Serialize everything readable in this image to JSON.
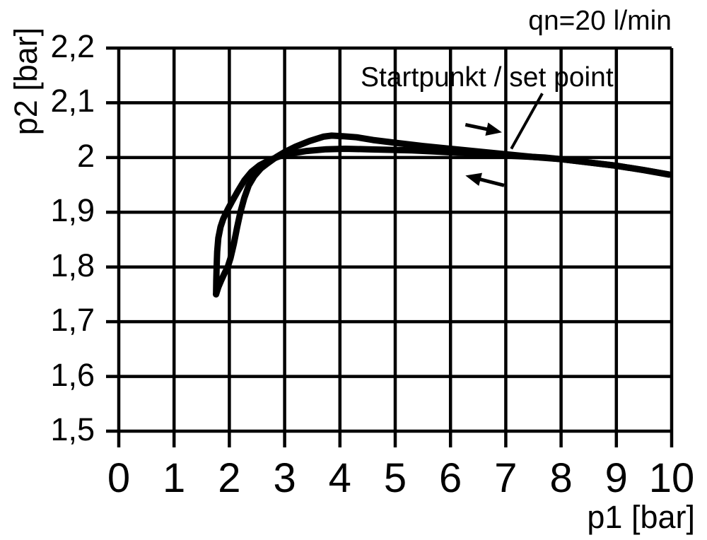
{
  "figure": {
    "background": "#ffffff",
    "ink_color": "#000000"
  },
  "chart_data": {
    "type": "line",
    "title_annotation": "qn=20 l/min",
    "xlabel": "p1 [bar]",
    "ylabel": "p2 [bar]",
    "xlim": [
      0,
      10
    ],
    "ylim": [
      1.5,
      2.2
    ],
    "grid": true,
    "legend": "none",
    "line_color": "#000000",
    "x_ticks": [
      {
        "label": "0",
        "value": 0
      },
      {
        "label": "1",
        "value": 1
      },
      {
        "label": "2",
        "value": 2
      },
      {
        "label": "3",
        "value": 3
      },
      {
        "label": "4",
        "value": 4
      },
      {
        "label": "5",
        "value": 5
      },
      {
        "label": "6",
        "value": 6
      },
      {
        "label": "7",
        "value": 7
      },
      {
        "label": "8",
        "value": 8
      },
      {
        "label": "9",
        "value": 9
      },
      {
        "label": "10",
        "value": 10
      }
    ],
    "y_ticks": [
      {
        "label": "2,2",
        "value": 2.2
      },
      {
        "label": "2,1",
        "value": 2.1
      },
      {
        "label": "2",
        "value": 2.0
      },
      {
        "label": "1,9",
        "value": 1.9
      },
      {
        "label": "1,8",
        "value": 1.8
      },
      {
        "label": "1,7",
        "value": 1.7
      },
      {
        "label": "1,6",
        "value": 1.6
      },
      {
        "label": "1,5",
        "value": 1.5
      }
    ],
    "series": [
      {
        "name": "pressure-increasing-sweep",
        "direction": "right",
        "points": [
          [
            1.76,
            1.75
          ],
          [
            1.8,
            1.763
          ],
          [
            1.85,
            1.775
          ],
          [
            1.91,
            1.788
          ],
          [
            1.97,
            1.8
          ],
          [
            2.02,
            1.816
          ],
          [
            2.08,
            1.842
          ],
          [
            2.14,
            1.872
          ],
          [
            2.2,
            1.9
          ],
          [
            2.27,
            1.926
          ],
          [
            2.35,
            1.949
          ],
          [
            2.45,
            1.966
          ],
          [
            2.57,
            1.98
          ],
          [
            2.7,
            1.99
          ],
          [
            2.85,
            2.001
          ],
          [
            3.0,
            2.01
          ],
          [
            3.2,
            2.02
          ],
          [
            3.45,
            2.03
          ],
          [
            3.7,
            2.038
          ],
          [
            3.85,
            2.04
          ],
          [
            4.05,
            2.039
          ],
          [
            4.3,
            2.037
          ],
          [
            4.6,
            2.032
          ],
          [
            5.0,
            2.027
          ],
          [
            5.5,
            2.021
          ],
          [
            6.0,
            2.016
          ],
          [
            6.5,
            2.011
          ],
          [
            7.0,
            2.006
          ],
          [
            7.5,
            2.001
          ],
          [
            8.0,
            1.997
          ],
          [
            8.5,
            1.991
          ],
          [
            9.0,
            1.985
          ],
          [
            9.5,
            1.977
          ],
          [
            9.95,
            1.969
          ]
        ]
      },
      {
        "name": "pressure-decreasing-sweep",
        "direction": "left",
        "points": [
          [
            9.95,
            1.969
          ],
          [
            9.5,
            1.977
          ],
          [
            9.0,
            1.985
          ],
          [
            8.5,
            1.991
          ],
          [
            8.0,
            1.997
          ],
          [
            7.7,
            2.0
          ],
          [
            7.3,
            2.002
          ],
          [
            6.9,
            2.004
          ],
          [
            6.5,
            2.007
          ],
          [
            6.1,
            2.009
          ],
          [
            5.7,
            2.011
          ],
          [
            5.3,
            2.013
          ],
          [
            4.9,
            2.014
          ],
          [
            4.5,
            2.015
          ],
          [
            4.1,
            2.016
          ],
          [
            3.75,
            2.015
          ],
          [
            3.4,
            2.012
          ],
          [
            3.1,
            2.007
          ],
          [
            2.9,
            2.002
          ],
          [
            2.72,
            1.995
          ],
          [
            2.55,
            1.986
          ],
          [
            2.4,
            1.974
          ],
          [
            2.27,
            1.958
          ],
          [
            2.15,
            1.938
          ],
          [
            2.05,
            1.92
          ],
          [
            1.97,
            1.905
          ],
          [
            1.89,
            1.888
          ],
          [
            1.84,
            1.873
          ],
          [
            1.8,
            1.853
          ],
          [
            1.78,
            1.828
          ],
          [
            1.77,
            1.8
          ],
          [
            1.763,
            1.775
          ],
          [
            1.76,
            1.75
          ]
        ]
      }
    ],
    "annotations": {
      "set_point_label": "Startpunkt / set point",
      "set_point_leader": {
        "from": [
          7.66,
          2.117
        ],
        "to": [
          7.1,
          2.016
        ]
      },
      "arrows": [
        {
          "name": "direction-arrow-right",
          "from": [
            6.27,
            2.06
          ],
          "to": [
            6.93,
            2.046
          ]
        },
        {
          "name": "direction-arrow-left",
          "from": [
            6.97,
            1.949
          ],
          "to": [
            6.27,
            1.967
          ]
        }
      ]
    }
  }
}
